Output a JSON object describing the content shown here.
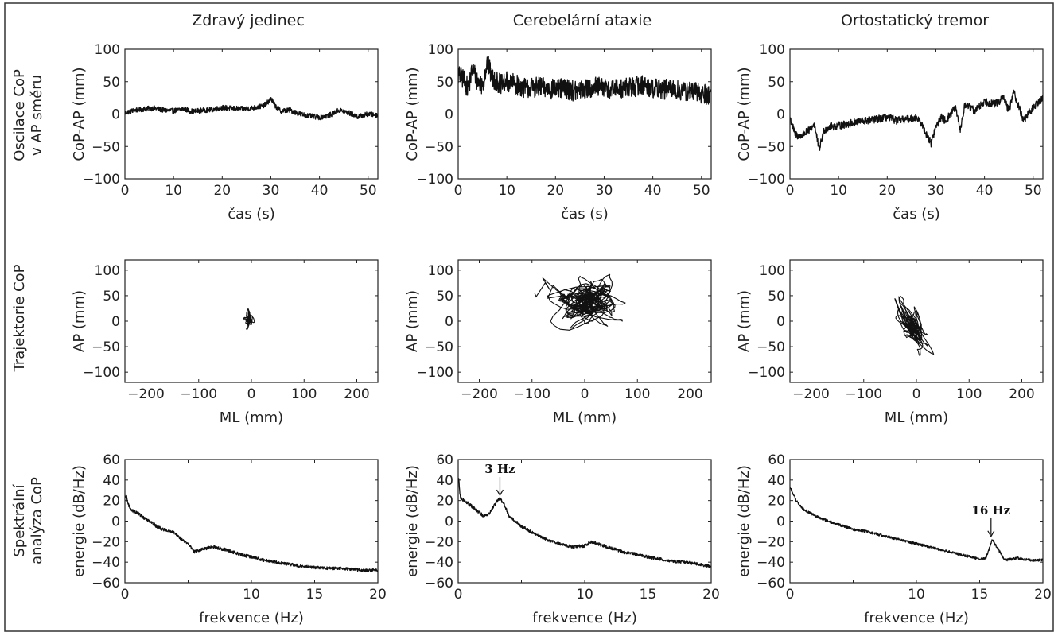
{
  "figure": {
    "column_titles": [
      "Zdravý jedinec",
      "Cerebelární ataxie",
      "Ortostatický tremor"
    ],
    "row_labels": [
      [
        "Oscilace CoP",
        "v AP směru"
      ],
      [
        "Trajektorie CoP"
      ],
      [
        "Spektrální",
        "analýza CoP"
      ]
    ]
  },
  "chart_data": [
    {
      "id": "ts-healthy",
      "type": "line",
      "xlabel": "čas (s)",
      "ylabel": "CoP-AP (mm)",
      "xlim": [
        0,
        52
      ],
      "ylim": [
        -100,
        100
      ],
      "xticks": [
        0,
        10,
        20,
        30,
        40,
        50
      ],
      "yticks": [
        -100,
        -50,
        0,
        50,
        100
      ],
      "series": [
        {
          "x": [
            0,
            2,
            4,
            6,
            8,
            10,
            12,
            14,
            16,
            18,
            20,
            22,
            24,
            26,
            28,
            29,
            30,
            31,
            32,
            34,
            36,
            38,
            40,
            42,
            44,
            46,
            48,
            50,
            52
          ],
          "y": [
            2,
            6,
            8,
            9,
            6,
            5,
            8,
            4,
            6,
            7,
            10,
            9,
            8,
            9,
            12,
            15,
            24,
            12,
            5,
            6,
            0,
            -3,
            -5,
            -2,
            6,
            2,
            -4,
            0,
            -2
          ],
          "noise": 4
        }
      ]
    },
    {
      "id": "ts-ataxia",
      "type": "line",
      "xlabel": "čas (s)",
      "ylabel": "CoP-AP (mm)",
      "xlim": [
        0,
        52
      ],
      "ylim": [
        -100,
        100
      ],
      "xticks": [
        0,
        10,
        20,
        30,
        40,
        50
      ],
      "yticks": [
        -100,
        -50,
        0,
        50,
        100
      ],
      "series": [
        {
          "x": [
            0,
            1,
            2,
            3,
            4,
            5,
            6,
            7,
            8,
            9,
            10,
            12,
            14,
            16,
            18,
            20,
            22,
            24,
            26,
            28,
            30,
            32,
            34,
            36,
            38,
            40,
            42,
            44,
            46,
            48,
            50,
            52
          ],
          "y": [
            60,
            55,
            40,
            70,
            50,
            45,
            80,
            55,
            50,
            45,
            50,
            45,
            40,
            42,
            40,
            38,
            40,
            35,
            38,
            42,
            40,
            38,
            40,
            42,
            45,
            40,
            38,
            38,
            35,
            35,
            32,
            30
          ],
          "noise": 16
        }
      ]
    },
    {
      "id": "ts-tremor",
      "type": "line",
      "xlabel": "čas (s)",
      "ylabel": "CoP-AP (mm)",
      "xlim": [
        0,
        52
      ],
      "ylim": [
        -100,
        100
      ],
      "xticks": [
        0,
        10,
        20,
        30,
        40,
        50
      ],
      "yticks": [
        -100,
        -50,
        0,
        50,
        100
      ],
      "series": [
        {
          "x": [
            0,
            1,
            2,
            4,
            5,
            6,
            7,
            8,
            10,
            12,
            14,
            16,
            18,
            20,
            22,
            24,
            26,
            27,
            28,
            29,
            30,
            31,
            32,
            34,
            35,
            36,
            38,
            40,
            42,
            44,
            45,
            46,
            48,
            50,
            52
          ],
          "y": [
            -5,
            -30,
            -35,
            -25,
            -15,
            -55,
            -25,
            -20,
            -18,
            -15,
            -12,
            -10,
            -8,
            -5,
            -10,
            -8,
            -5,
            -15,
            -30,
            -45,
            -20,
            -5,
            -10,
            10,
            -25,
            15,
            5,
            20,
            15,
            25,
            5,
            35,
            -10,
            10,
            25
          ],
          "noise": 6
        }
      ]
    },
    {
      "id": "traj-healthy",
      "type": "scatter",
      "xlabel": "ML (mm)",
      "ylabel": "AP (mm)",
      "xlim": [
        -240,
        240
      ],
      "ylim": [
        -120,
        120
      ],
      "xticks": [
        -200,
        -100,
        0,
        100,
        200
      ],
      "yticks": [
        -100,
        -50,
        0,
        50,
        100
      ],
      "trajectory": {
        "cx": -6,
        "cy": 4,
        "sx": 4,
        "sy": 7,
        "n": 240
      }
    },
    {
      "id": "traj-ataxia",
      "type": "scatter",
      "xlabel": "ML (mm)",
      "ylabel": "AP (mm)",
      "xlim": [
        -240,
        240
      ],
      "ylim": [
        -120,
        120
      ],
      "xticks": [
        -200,
        -100,
        0,
        100,
        200
      ],
      "yticks": [
        -100,
        -50,
        0,
        50,
        100
      ],
      "trajectory": {
        "cx": 5,
        "cy": 38,
        "sx": 30,
        "sy": 22,
        "n": 900
      },
      "excursion": {
        "x": [
          -95,
          -92,
          -75,
          -65,
          -80,
          -55,
          -40,
          -70,
          -60,
          -45,
          -30
        ],
        "y": [
          55,
          48,
          75,
          60,
          85,
          62,
          50,
          45,
          70,
          55,
          45
        ]
      }
    },
    {
      "id": "traj-tremor",
      "type": "scatter",
      "xlabel": "ML (mm)",
      "ylabel": "AP (mm)",
      "xlim": [
        -240,
        240
      ],
      "ylim": [
        -120,
        120
      ],
      "xticks": [
        -200,
        -100,
        0,
        100,
        200
      ],
      "yticks": [
        -100,
        -50,
        0,
        50,
        100
      ],
      "trajectory": {
        "cx": -8,
        "cy": -10,
        "sx": 11,
        "sy": 22,
        "n": 600,
        "tilt": -0.45
      }
    },
    {
      "id": "psd-healthy",
      "type": "line",
      "xlabel": "frekvence (Hz)",
      "ylabel": "energie (dB/Hz)",
      "xlim": [
        0,
        20
      ],
      "ylim": [
        -60,
        60
      ],
      "xticks": [
        0,
        5,
        10,
        15,
        20
      ],
      "xtick_labels": [
        "0",
        "",
        "10",
        "15",
        "20"
      ],
      "yticks": [
        -60,
        -40,
        -20,
        0,
        20,
        40,
        60
      ],
      "series": [
        {
          "x": [
            0,
            0.1,
            0.3,
            0.6,
            1,
            1.5,
            2,
            2.5,
            3,
            3.5,
            4,
            4.5,
            5,
            5.5,
            6,
            7,
            8,
            9,
            10,
            11,
            12,
            13,
            14,
            15,
            16,
            17,
            18,
            19,
            20
          ],
          "y": [
            22,
            25,
            15,
            10,
            8,
            3,
            0,
            -5,
            -8,
            -10,
            -12,
            -18,
            -22,
            -30,
            -28,
            -25,
            -28,
            -32,
            -35,
            -38,
            -40,
            -42,
            -44,
            -45,
            -46,
            -46,
            -47,
            -48,
            -48
          ],
          "noise": 1.5
        }
      ]
    },
    {
      "id": "psd-ataxia",
      "type": "line",
      "xlabel": "frekvence (Hz)",
      "ylabel": "energie (dB/Hz)",
      "xlim": [
        0,
        20
      ],
      "ylim": [
        -60,
        60
      ],
      "xticks": [
        0,
        5,
        10,
        15,
        20
      ],
      "xtick_labels": [
        "0",
        "",
        "10",
        "15",
        "20"
      ],
      "yticks": [
        -60,
        -40,
        -20,
        0,
        20,
        40,
        60
      ],
      "series": [
        {
          "x": [
            0,
            0.05,
            0.1,
            0.2,
            0.5,
            1,
            1.5,
            2,
            2.5,
            3,
            3.3,
            3.7,
            4,
            4.5,
            5,
            6,
            7,
            8,
            9,
            10,
            10.5,
            11,
            12,
            13,
            14,
            15,
            16,
            17,
            18,
            19,
            20
          ],
          "y": [
            38,
            42,
            30,
            22,
            20,
            15,
            10,
            5,
            8,
            18,
            22,
            15,
            5,
            0,
            -5,
            -12,
            -18,
            -22,
            -25,
            -24,
            -20,
            -22,
            -26,
            -30,
            -32,
            -35,
            -37,
            -39,
            -40,
            -42,
            -44
          ],
          "noise": 1.5
        }
      ],
      "annotations": [
        {
          "text": "3 Hz",
          "x": 3.3,
          "y": 22
        }
      ]
    },
    {
      "id": "psd-tremor",
      "type": "line",
      "xlabel": "frekvence (Hz)",
      "ylabel": "energie (dB/Hz)",
      "xlim": [
        0,
        20
      ],
      "ylim": [
        -60,
        60
      ],
      "xticks": [
        0,
        5,
        10,
        15,
        20
      ],
      "xtick_labels": [
        "0",
        "",
        "10",
        "15",
        "20"
      ],
      "yticks": [
        -60,
        -40,
        -20,
        0,
        20,
        40,
        60
      ],
      "series": [
        {
          "x": [
            0,
            0.2,
            0.5,
            1,
            2,
            3,
            4,
            5,
            6,
            7,
            8,
            9,
            10,
            11,
            12,
            13,
            14,
            15,
            15.5,
            16,
            16.5,
            17,
            18,
            19,
            20
          ],
          "y": [
            33,
            28,
            20,
            12,
            5,
            0,
            -4,
            -8,
            -10,
            -13,
            -16,
            -19,
            -22,
            -25,
            -28,
            -31,
            -34,
            -37,
            -36,
            -18,
            -28,
            -38,
            -36,
            -38,
            -38
          ],
          "noise": 1.2
        }
      ],
      "annotations": [
        {
          "text": "16 Hz",
          "x": 15.9,
          "y": -18
        }
      ]
    }
  ]
}
